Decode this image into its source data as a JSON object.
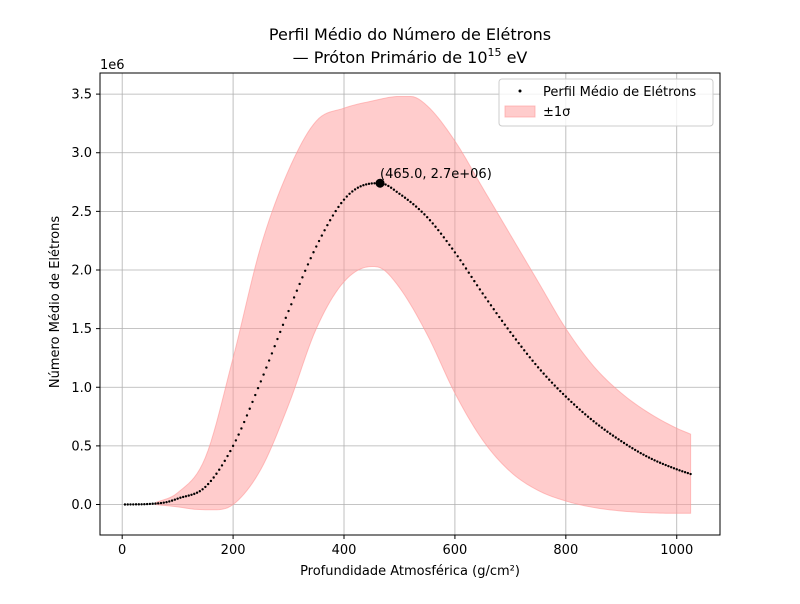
{
  "chart_data": {
    "type": "scatter",
    "title_line1": "Perfil Médio do Número de Elétrons",
    "title_line2_prefix": "— Próton Primário de 10",
    "title_line2_exp": "15",
    "title_line2_suffix": " eV",
    "xlabel": "Profundidade Atmosférica (g/cm²)",
    "ylabel": "Número Médio de Elétrons",
    "y_offset_label": "1e6",
    "xlim": [
      -40,
      1078
    ],
    "ylim": [
      -260000,
      3680000
    ],
    "x_ticks": [
      0,
      200,
      400,
      600,
      800,
      1000
    ],
    "x_tick_labels": [
      "0",
      "200",
      "400",
      "600",
      "800",
      "1000"
    ],
    "y_ticks": [
      0,
      500000,
      1000000,
      1500000,
      2000000,
      2500000,
      3000000,
      3500000
    ],
    "y_tick_labels": [
      "0.0",
      "0.5",
      "1.0",
      "1.5",
      "2.0",
      "2.5",
      "3.0",
      "3.5"
    ],
    "grid": true,
    "legend_position": "top-right",
    "series": [
      {
        "name": "Perfil Médio de Elétrons",
        "kind": "dotted-points",
        "color": "#000000",
        "x_start": 5,
        "x_end": 1025,
        "x_step": 5,
        "anchors_x": [
          5,
          50,
          80,
          100,
          150,
          200,
          250,
          300,
          350,
          400,
          440,
          465,
          500,
          550,
          600,
          650,
          700,
          750,
          800,
          850,
          900,
          950,
          1000,
          1025
        ],
        "anchors_y": [
          0,
          5000,
          20000,
          50000,
          150000,
          500000,
          1050000,
          1650000,
          2200000,
          2600000,
          2730000,
          2740000,
          2650000,
          2450000,
          2150000,
          1800000,
          1470000,
          1170000,
          920000,
          710000,
          540000,
          400000,
          300000,
          260000
        ]
      },
      {
        "name": "±1σ",
        "kind": "band",
        "color": "#ff9999",
        "alpha": 0.5,
        "upper_x": [
          60,
          100,
          150,
          200,
          250,
          300,
          350,
          400,
          450,
          500,
          520,
          550,
          600,
          650,
          700,
          750,
          800,
          850,
          900,
          950,
          1000,
          1025
        ],
        "upper_y": [
          15000,
          100000,
          400000,
          1250000,
          2200000,
          2850000,
          3270000,
          3380000,
          3440000,
          3480000,
          3480000,
          3400000,
          3100000,
          2700000,
          2300000,
          1900000,
          1500000,
          1180000,
          950000,
          780000,
          650000,
          600000
        ],
        "lower_x": [
          60,
          100,
          130,
          165,
          200,
          250,
          300,
          350,
          400,
          450,
          465,
          500,
          550,
          600,
          650,
          700,
          750,
          800,
          850,
          900,
          950,
          1000,
          1025
        ],
        "lower_y": [
          0,
          -20000,
          -40000,
          -45000,
          0,
          300000,
          850000,
          1500000,
          1900000,
          2030000,
          2020000,
          1850000,
          1450000,
          950000,
          550000,
          280000,
          120000,
          30000,
          -25000,
          -55000,
          -70000,
          -75000,
          -75000
        ]
      }
    ],
    "annotation": {
      "x": 465,
      "y": 2740000,
      "text": "(465.0, 2.7e+06)"
    }
  }
}
